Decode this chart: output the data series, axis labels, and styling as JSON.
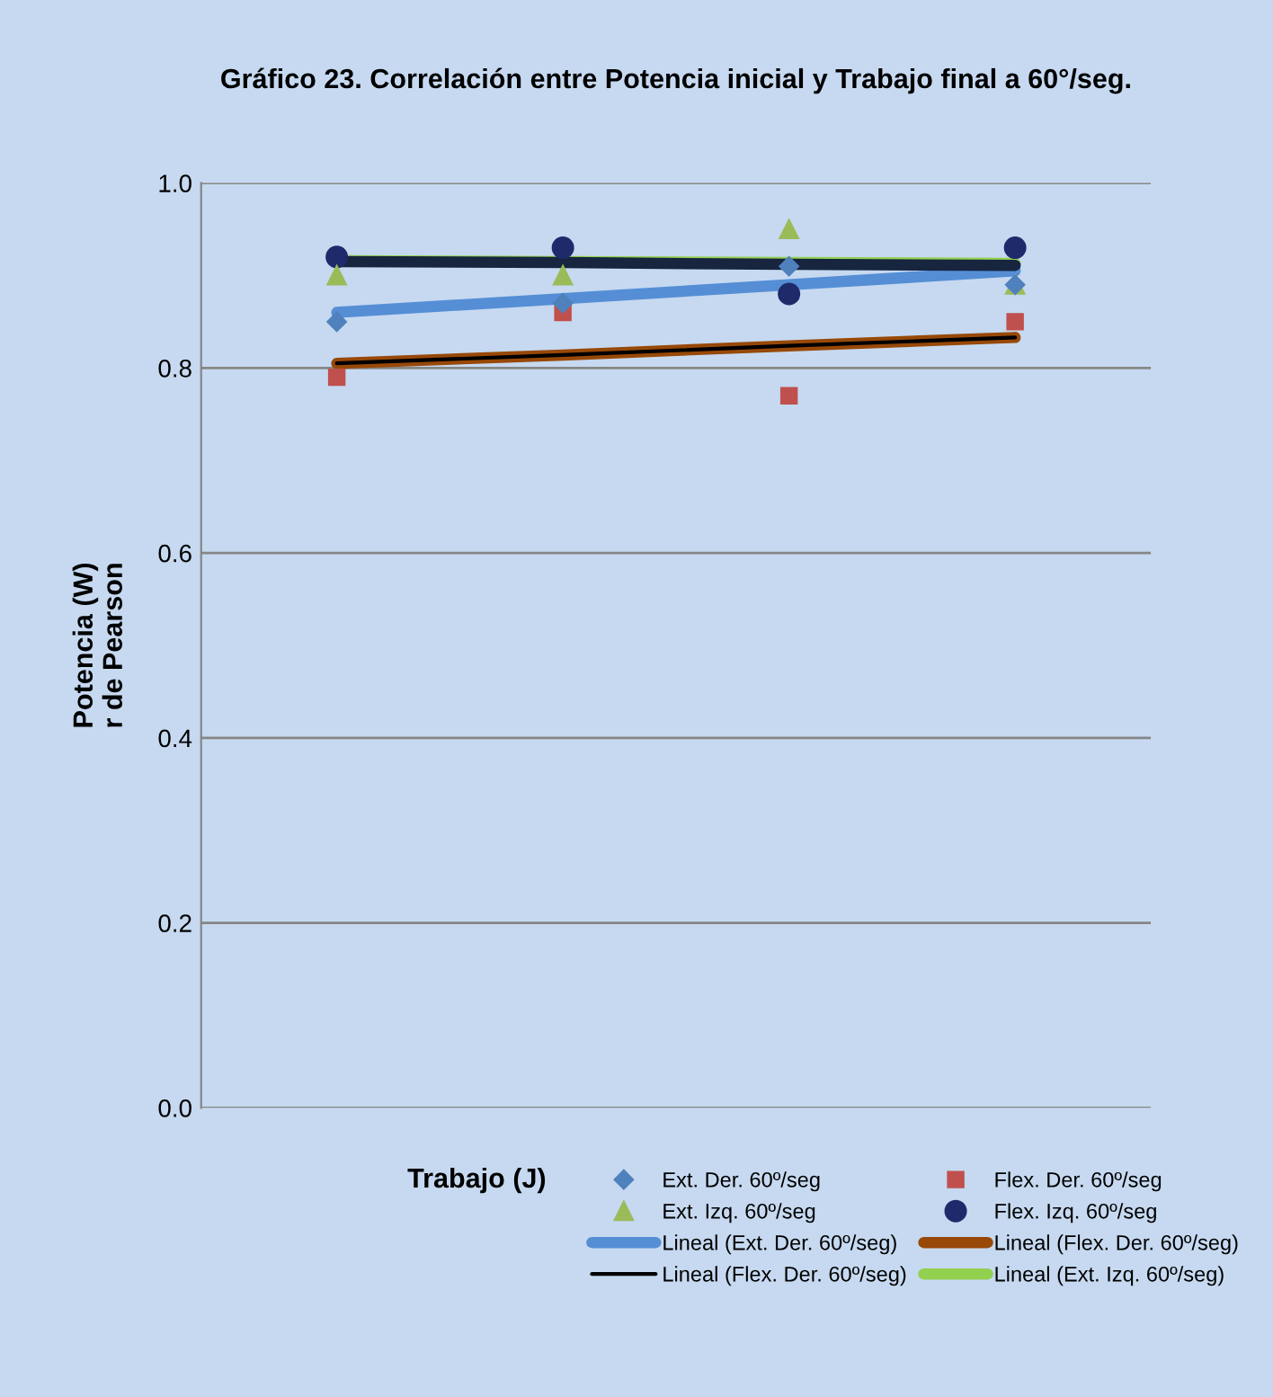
{
  "chart_data": {
    "type": "scatter",
    "title": "Gráfico 23. Correlación entre Potencia inicial y Trabajo final a 60°/seg.",
    "xlabel": "Trabajo (J)",
    "ylabel": "Potencia (W)\nr de Pearson",
    "categories": [
      null,
      null,
      null,
      null
    ],
    "ylim": [
      0,
      1
    ],
    "yticks": [
      {
        "value": 0,
        "label": "0.0"
      },
      {
        "value": 0.2,
        "label": "0.2"
      },
      {
        "value": 0.4,
        "label": "0.4"
      },
      {
        "value": 0.6,
        "label": "0.6"
      },
      {
        "value": 0.8,
        "label": "0.8"
      },
      {
        "value": 1,
        "label": "1.0"
      }
    ],
    "grid": "y",
    "legend": "bottom",
    "tick_labels": "y",
    "series": [
      {
        "name": "Ext. Der. 60º/seg",
        "marker": "diamond",
        "color": "#4f81bd",
        "values": [
          0.85,
          0.87,
          0.91,
          0.89
        ]
      },
      {
        "name": "Flex. Der. 60º/seg",
        "marker": "square",
        "color": "#c0504d",
        "values": [
          0.79,
          0.86,
          0.77,
          0.85
        ]
      },
      {
        "name": "Ext. Izq. 60º/seg",
        "marker": "triangle",
        "color": "#9bbb59",
        "values": [
          0.9,
          0.9,
          0.95,
          0.89
        ]
      },
      {
        "name": "Flex. Izq. 60º/seg",
        "marker": "circle",
        "color": "#1f2a6b",
        "values": [
          0.92,
          0.93,
          0.88,
          0.93
        ]
      },
      {
        "name": "Lineal (Ext. Der. 60º/seg)",
        "type": "line",
        "color": "#558ed5",
        "values": [
          0.86,
          0.875,
          0.89,
          0.905
        ]
      },
      {
        "name": "Lineal (Flex. Der. 60º/seg)",
        "type": "line",
        "color": "#984807",
        "values": [
          0.805,
          0.814,
          0.824,
          0.833
        ]
      },
      {
        "name": "Lineal (Flex. Der. 60º/seg)",
        "type": "line",
        "color": "#000000",
        "values": [
          0.805,
          0.814,
          0.824,
          0.833
        ]
      },
      {
        "name": "Lineal (Ext. Izq. 60º/seg)",
        "type": "line",
        "color": "#92d050",
        "values": [
          0.916,
          0.915,
          0.914,
          0.913
        ]
      },
      {
        "type": "line",
        "color": "#17253f",
        "values": [
          0.915,
          0.914,
          0.912,
          0.911
        ]
      }
    ]
  }
}
